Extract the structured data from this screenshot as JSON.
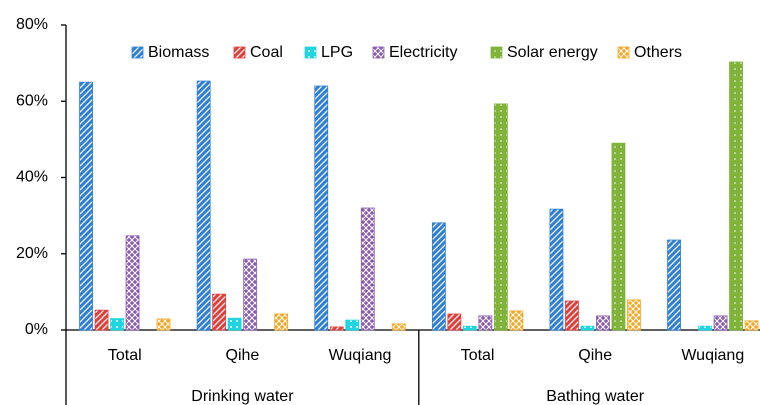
{
  "chart_data": {
    "type": "bar",
    "categories": [
      "Total",
      "Qihe",
      "Wuqiang",
      "Total",
      "Qihe",
      "Wuqiang"
    ],
    "groups": [
      "Drinking water",
      "Bathing water"
    ],
    "series": [
      {
        "name": "Biomass",
        "color": "#2e7fd6",
        "values": [
          65,
          65.3,
          64,
          28.1,
          31.7,
          23.6
        ]
      },
      {
        "name": "Coal",
        "color": "#e0403c",
        "values": [
          5.2,
          9.4,
          0.8,
          4.2,
          7.6,
          0
        ]
      },
      {
        "name": "LPG",
        "color": "#1fd6e0",
        "values": [
          3,
          3.1,
          2.6,
          1,
          1,
          1
        ]
      },
      {
        "name": "Electricity",
        "color": "#8a5cb0",
        "values": [
          24.7,
          18.6,
          32,
          3.7,
          3.7,
          3.7
        ]
      },
      {
        "name": "Solar energy",
        "color": "#7fb33a",
        "values": [
          0,
          0,
          0,
          59.3,
          49,
          70.3
        ]
      },
      {
        "name": "Others",
        "color": "#f5a623",
        "values": [
          2.9,
          4.2,
          1.6,
          5,
          7.9,
          2.4
        ]
      }
    ],
    "ylim": [
      0,
      80
    ],
    "yticks": [
      {
        "value": 0,
        "label": "0%"
      },
      {
        "value": 20,
        "label": "20%"
      },
      {
        "value": 40,
        "label": "40%"
      },
      {
        "value": 60,
        "label": "60%"
      },
      {
        "value": 80,
        "label": "80%"
      }
    ],
    "legend": "top"
  }
}
